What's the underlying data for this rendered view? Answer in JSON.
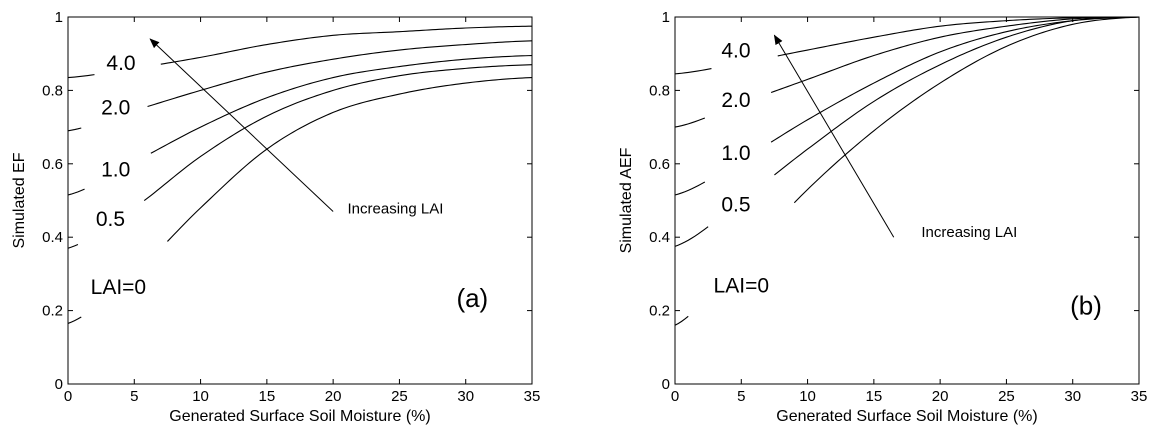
{
  "chart_data": [
    {
      "type": "line",
      "panel_label": "(a)",
      "xlabel": "Generated Surface Soil Moisture (%)",
      "ylabel": "Simulated EF",
      "xlim": [
        0,
        35
      ],
      "ylim": [
        0,
        1
      ],
      "xticks": [
        0,
        5,
        10,
        15,
        20,
        25,
        30,
        35
      ],
      "yticks": [
        0,
        0.2,
        0.4,
        0.6,
        0.8,
        1
      ],
      "grid": false,
      "series": [
        {
          "name": "LAI=0",
          "x": [
            0,
            5,
            10,
            15,
            20,
            25,
            30,
            35
          ],
          "y": [
            0.165,
            0.3,
            0.48,
            0.64,
            0.74,
            0.79,
            0.82,
            0.835
          ]
        },
        {
          "name": "0.5",
          "x": [
            0,
            5,
            10,
            15,
            20,
            25,
            30,
            35
          ],
          "y": [
            0.37,
            0.48,
            0.62,
            0.73,
            0.8,
            0.84,
            0.86,
            0.87
          ]
        },
        {
          "name": "1.0",
          "x": [
            0,
            5,
            10,
            15,
            20,
            25,
            30,
            35
          ],
          "y": [
            0.515,
            0.605,
            0.7,
            0.78,
            0.835,
            0.865,
            0.885,
            0.895
          ]
        },
        {
          "name": "2.0",
          "x": [
            0,
            5,
            10,
            15,
            20,
            25,
            30,
            35
          ],
          "y": [
            0.69,
            0.745,
            0.8,
            0.85,
            0.885,
            0.91,
            0.925,
            0.935
          ]
        },
        {
          "name": "4.0",
          "x": [
            0,
            5,
            10,
            15,
            20,
            25,
            30,
            35
          ],
          "y": [
            0.835,
            0.86,
            0.89,
            0.925,
            0.95,
            0.96,
            0.97,
            0.975
          ]
        }
      ],
      "annotation": {
        "text": "Increasing LAI",
        "arrow_from": [
          20,
          0.47
        ],
        "arrow_to": [
          6.2,
          0.94
        ]
      }
    },
    {
      "type": "line",
      "panel_label": "(b)",
      "xlabel": "Generated Surface Soil Moisture (%)",
      "ylabel": "Simulated AEF",
      "xlim": [
        0,
        35
      ],
      "ylim": [
        0,
        1
      ],
      "xticks": [
        0,
        5,
        10,
        15,
        20,
        25,
        30,
        35
      ],
      "yticks": [
        0,
        0.2,
        0.4,
        0.6,
        0.8,
        1
      ],
      "grid": false,
      "series": [
        {
          "name": "LAI=0",
          "x": [
            0,
            5,
            10,
            15,
            20,
            25,
            30,
            35
          ],
          "y": [
            0.16,
            0.34,
            0.53,
            0.69,
            0.82,
            0.92,
            0.98,
            1.0
          ]
        },
        {
          "name": "0.5",
          "x": [
            0,
            5,
            10,
            15,
            20,
            25,
            30,
            35
          ],
          "y": [
            0.375,
            0.5,
            0.64,
            0.77,
            0.87,
            0.945,
            0.99,
            1.0
          ]
        },
        {
          "name": "1.0",
          "x": [
            0,
            5,
            10,
            15,
            20,
            25,
            30,
            35
          ],
          "y": [
            0.515,
            0.61,
            0.72,
            0.82,
            0.905,
            0.96,
            0.99,
            1.0
          ]
        },
        {
          "name": "2.0",
          "x": [
            0,
            5,
            10,
            15,
            20,
            25,
            30,
            35
          ],
          "y": [
            0.7,
            0.765,
            0.83,
            0.895,
            0.945,
            0.975,
            0.995,
            1.0
          ]
        },
        {
          "name": "4.0",
          "x": [
            0,
            5,
            10,
            15,
            20,
            25,
            30,
            35
          ],
          "y": [
            0.845,
            0.875,
            0.91,
            0.945,
            0.975,
            0.99,
            0.998,
            1.0
          ]
        }
      ],
      "annotation": {
        "text": "Increasing LAI",
        "arrow_from": [
          16.5,
          0.4
        ],
        "arrow_to": [
          7.5,
          0.95
        ]
      }
    }
  ]
}
